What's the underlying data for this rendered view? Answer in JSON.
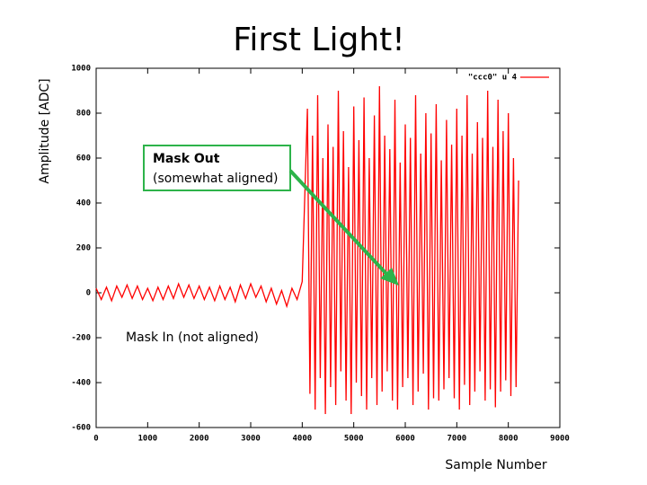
{
  "chart_data": {
    "type": "line",
    "title": "First Light!",
    "x_label": "Sample Number",
    "y_label": "Amplitude [ADC]",
    "x": [
      0,
      100,
      200,
      300,
      400,
      500,
      600,
      700,
      800,
      900,
      1000,
      1100,
      1200,
      1300,
      1400,
      1500,
      1600,
      1700,
      1800,
      1900,
      2000,
      2100,
      2200,
      2300,
      2400,
      2500,
      2600,
      2700,
      2800,
      2900,
      3000,
      3100,
      3200,
      3300,
      3400,
      3500,
      3600,
      3700,
      3800,
      3900,
      4000,
      4100,
      4150,
      4200,
      4250,
      4300,
      4350,
      4400,
      4450,
      4500,
      4550,
      4600,
      4650,
      4700,
      4750,
      4800,
      4850,
      4900,
      4950,
      5000,
      5050,
      5100,
      5150,
      5200,
      5250,
      5300,
      5350,
      5400,
      5450,
      5500,
      5550,
      5600,
      5650,
      5700,
      5750,
      5800,
      5850,
      5900,
      5950,
      6000,
      6050,
      6100,
      6150,
      6200,
      6250,
      6300,
      6350,
      6400,
      6450,
      6500,
      6550,
      6600,
      6650,
      6700,
      6750,
      6800,
      6850,
      6900,
      6950,
      7000,
      7050,
      7100,
      7150,
      7200,
      7250,
      7300,
      7350,
      7400,
      7450,
      7500,
      7550,
      7600,
      7650,
      7700,
      7750,
      7800,
      7850,
      7900,
      7950,
      8000,
      8050,
      8100,
      8150,
      8200
    ],
    "series": [
      {
        "name": "\"ccc0\" u 4",
        "color": "#ff0000",
        "values": [
          20,
          -30,
          25,
          -35,
          30,
          -20,
          35,
          -25,
          30,
          -30,
          20,
          -35,
          25,
          -30,
          30,
          -25,
          40,
          -20,
          35,
          -25,
          30,
          -30,
          25,
          -35,
          30,
          -30,
          25,
          -40,
          35,
          -25,
          40,
          -20,
          30,
          -40,
          20,
          -50,
          10,
          -60,
          20,
          -30,
          50,
          820,
          -450,
          700,
          -520,
          880,
          -380,
          600,
          -540,
          750,
          -420,
          650,
          -500,
          900,
          -350,
          720,
          -480,
          560,
          -540,
          830,
          -400,
          680,
          -460,
          870,
          -520,
          600,
          -380,
          790,
          -500,
          920,
          -440,
          700,
          -350,
          640,
          -480,
          860,
          -520,
          580,
          -420,
          750,
          -380,
          690,
          -500,
          880,
          -440,
          620,
          -360,
          800,
          -520,
          710,
          -470,
          840,
          -480,
          590,
          -430,
          770,
          -380,
          660,
          -470,
          820,
          -520,
          700,
          -410,
          880,
          -500,
          620,
          -440,
          760,
          -350,
          690,
          -480,
          900,
          -430,
          650,
          -510,
          860,
          -440,
          720,
          -390,
          800,
          -460,
          600,
          -420,
          500
        ]
      }
    ],
    "xlim": [
      0,
      9000
    ],
    "xticks": [
      0,
      1000,
      2000,
      3000,
      4000,
      5000,
      6000,
      7000,
      8000,
      9000
    ],
    "ylim": [
      -600,
      1000
    ],
    "yticks": [
      -600,
      -400,
      -200,
      0,
      200,
      400,
      600,
      800,
      1000
    ],
    "grid": false,
    "legend": "top right",
    "annotations": {
      "mask_out_title": "Mask Out",
      "mask_out_sub": "(somewhat aligned)",
      "mask_in": "Mask In (not aligned)"
    }
  }
}
